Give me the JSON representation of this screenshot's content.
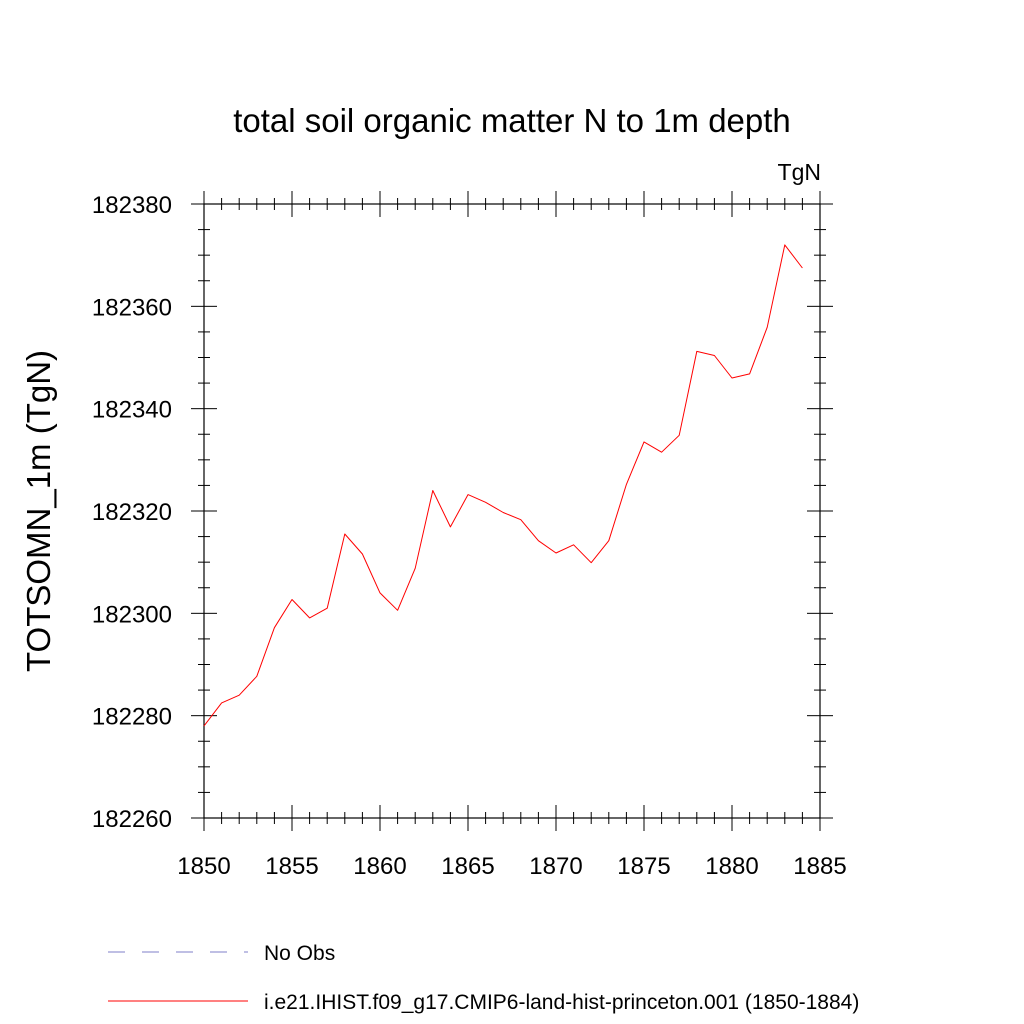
{
  "chart_data": {
    "type": "line",
    "title": "total soil organic matter N to 1m depth",
    "units": "TgN",
    "ylabel": "TOTSOMN_1m  (TgN)",
    "xlabel": "",
    "xlim": [
      1850,
      1885
    ],
    "ylim": [
      182260,
      182380
    ],
    "xticks": [
      1850,
      1855,
      1860,
      1865,
      1870,
      1875,
      1880,
      1885
    ],
    "yticks": [
      182260,
      182280,
      182300,
      182320,
      182340,
      182360,
      182380
    ],
    "grid": false,
    "legend_position": "bottom",
    "series": [
      {
        "name": "i.e21.IHIST.f09_g17.CMIP6-land-hist-princeton.001 (1850-1884)",
        "color": "#ff0000",
        "style": "solid",
        "x": [
          1850,
          1851,
          1852,
          1853,
          1854,
          1855,
          1856,
          1857,
          1858,
          1859,
          1860,
          1861,
          1862,
          1863,
          1864,
          1865,
          1866,
          1867,
          1868,
          1869,
          1870,
          1871,
          1872,
          1873,
          1874,
          1875,
          1876,
          1877,
          1878,
          1879,
          1880,
          1881,
          1882,
          1883,
          1884
        ],
        "y": [
          182278,
          182282.5,
          182284,
          182287.7,
          182297.2,
          182302.7,
          182299.1,
          182301,
          182315.5,
          182311.6,
          182304,
          182300.6,
          182308.8,
          182324,
          182316.9,
          182323.2,
          182321.7,
          182319.7,
          182318.3,
          182314.2,
          182311.8,
          182313.4,
          182309.9,
          182314.2,
          182325.2,
          182333.5,
          182331.5,
          182334.8,
          182351.2,
          182350.4,
          182346,
          182346.8,
          182355.9,
          182372,
          182367.5
        ]
      }
    ],
    "legend": [
      {
        "label": "No Obs",
        "color": "#7f7fc8",
        "style": "dashed"
      },
      {
        "label": "i.e21.IHIST.f09_g17.CMIP6-land-hist-princeton.001 (1850-1884)",
        "color": "#ff0000",
        "style": "solid"
      }
    ]
  }
}
